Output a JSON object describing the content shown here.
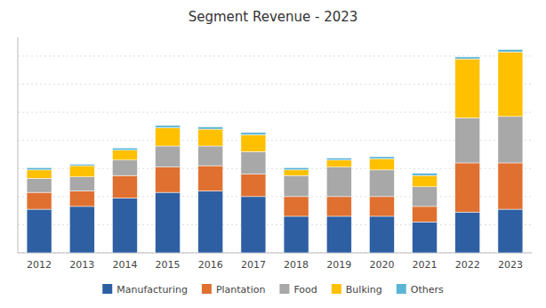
{
  "chart_data": {
    "type": "bar",
    "title": "Segment Revenue - 2023",
    "categories": [
      "2012",
      "2013",
      "2014",
      "2015",
      "2016",
      "2017",
      "2018",
      "2019",
      "2020",
      "2021",
      "2022",
      "2023"
    ],
    "series": [
      {
        "name": "Manufacturing",
        "color": "#2E5FA3",
        "values": [
          155,
          165,
          195,
          215,
          220,
          200,
          130,
          130,
          130,
          110,
          145,
          155
        ]
      },
      {
        "name": "Plantation",
        "color": "#E07030",
        "values": [
          60,
          55,
          80,
          90,
          90,
          80,
          70,
          70,
          70,
          55,
          175,
          165
        ]
      },
      {
        "name": "Food",
        "color": "#A8A8A8",
        "values": [
          50,
          50,
          55,
          75,
          70,
          80,
          75,
          105,
          95,
          70,
          160,
          165
        ]
      },
      {
        "name": "Bulking",
        "color": "#FFC000",
        "values": [
          30,
          40,
          35,
          65,
          60,
          60,
          20,
          25,
          40,
          40,
          210,
          230
        ]
      },
      {
        "name": "Others",
        "color": "#5BB5D5",
        "values": [
          8,
          5,
          8,
          8,
          8,
          8,
          8,
          7,
          7,
          8,
          7,
          8
        ]
      }
    ],
    "stacked": true,
    "ylim": [
      0,
      766.38
    ],
    "yticks": [
      0,
      100,
      200,
      300,
      400,
      500,
      600,
      700
    ],
    "grid": true,
    "tick_labels": "x",
    "legend": "bottom"
  }
}
